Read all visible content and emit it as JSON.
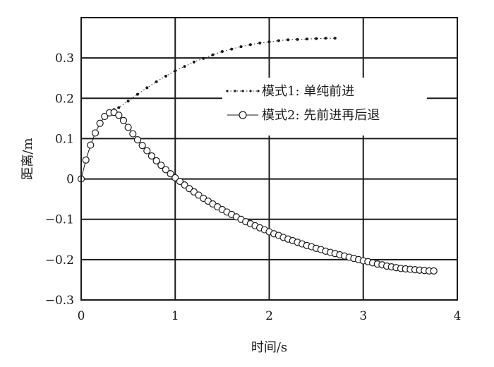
{
  "chart_data": {
    "type": "line",
    "xlabel": "时间/s",
    "ylabel": "距离/m",
    "xlim": [
      0,
      4
    ],
    "ylim": [
      -0.3,
      0.4
    ],
    "xticks": [
      0,
      1,
      2,
      3,
      4
    ],
    "xtick_labels": [
      "0",
      "1",
      "2",
      "3",
      "4"
    ],
    "yticks": [
      -0.3,
      -0.2,
      -0.1,
      0,
      0.1,
      0.2,
      0.3
    ],
    "ytick_labels": [
      "−0.3",
      "−0.2",
      "−0.1",
      "0",
      "0.1",
      "0.2",
      "0.3"
    ],
    "grid": true,
    "legend_position": "center-right",
    "series": [
      {
        "name": "模式1: 单纯前进",
        "style": "dotted-line-small-dots",
        "color": "#1a1a1a",
        "x": [
          0,
          0.05,
          0.1,
          0.15,
          0.2,
          0.25,
          0.3,
          0.35,
          0.4,
          0.5,
          0.6,
          0.7,
          0.8,
          0.9,
          1.0,
          1.1,
          1.2,
          1.3,
          1.4,
          1.5,
          1.6,
          1.7,
          1.8,
          1.9,
          2.0,
          2.1,
          2.2,
          2.3,
          2.4,
          2.5,
          2.6,
          2.7
        ],
        "y": [
          0,
          0.047,
          0.084,
          0.114,
          0.138,
          0.155,
          0.166,
          0.172,
          0.177,
          0.193,
          0.21,
          0.226,
          0.241,
          0.255,
          0.268,
          0.279,
          0.29,
          0.299,
          0.308,
          0.316,
          0.322,
          0.328,
          0.333,
          0.337,
          0.34,
          0.343,
          0.345,
          0.346,
          0.347,
          0.348,
          0.349,
          0.349
        ]
      },
      {
        "name": "模式2: 先前进再后退",
        "style": "line-open-circles",
        "color": "#1a1a1a",
        "x": [
          0,
          0.05,
          0.1,
          0.15,
          0.2,
          0.25,
          0.3,
          0.35,
          0.4,
          0.45,
          0.5,
          0.55,
          0.6,
          0.65,
          0.7,
          0.75,
          0.8,
          0.85,
          0.9,
          0.95,
          1.0,
          1.05,
          1.1,
          1.15,
          1.2,
          1.25,
          1.3,
          1.35,
          1.4,
          1.45,
          1.5,
          1.55,
          1.6,
          1.65,
          1.7,
          1.75,
          1.8,
          1.85,
          1.9,
          1.95,
          2.0,
          2.05,
          2.1,
          2.15,
          2.2,
          2.25,
          2.3,
          2.35,
          2.4,
          2.45,
          2.5,
          2.55,
          2.6,
          2.65,
          2.7,
          2.75,
          2.8,
          2.85,
          2.9,
          2.95,
          3.0,
          3.05,
          3.1,
          3.15,
          3.2,
          3.25,
          3.3,
          3.35,
          3.4,
          3.45,
          3.5,
          3.55,
          3.6,
          3.65,
          3.7,
          3.75
        ],
        "y": [
          0,
          0.047,
          0.084,
          0.114,
          0.138,
          0.155,
          0.164,
          0.165,
          0.158,
          0.145,
          0.128,
          0.112,
          0.097,
          0.083,
          0.07,
          0.057,
          0.045,
          0.034,
          0.023,
          0.013,
          0.003,
          -0.006,
          -0.015,
          -0.024,
          -0.032,
          -0.04,
          -0.048,
          -0.055,
          -0.062,
          -0.069,
          -0.076,
          -0.082,
          -0.088,
          -0.094,
          -0.1,
          -0.106,
          -0.111,
          -0.116,
          -0.121,
          -0.126,
          -0.131,
          -0.136,
          -0.14,
          -0.145,
          -0.149,
          -0.153,
          -0.157,
          -0.161,
          -0.165,
          -0.168,
          -0.172,
          -0.175,
          -0.179,
          -0.182,
          -0.185,
          -0.188,
          -0.191,
          -0.194,
          -0.197,
          -0.2,
          -0.203,
          -0.205,
          -0.208,
          -0.211,
          -0.213,
          -0.216,
          -0.218,
          -0.22,
          -0.222,
          -0.223,
          -0.224,
          -0.225,
          -0.226,
          -0.227,
          -0.228,
          -0.228
        ]
      }
    ]
  }
}
